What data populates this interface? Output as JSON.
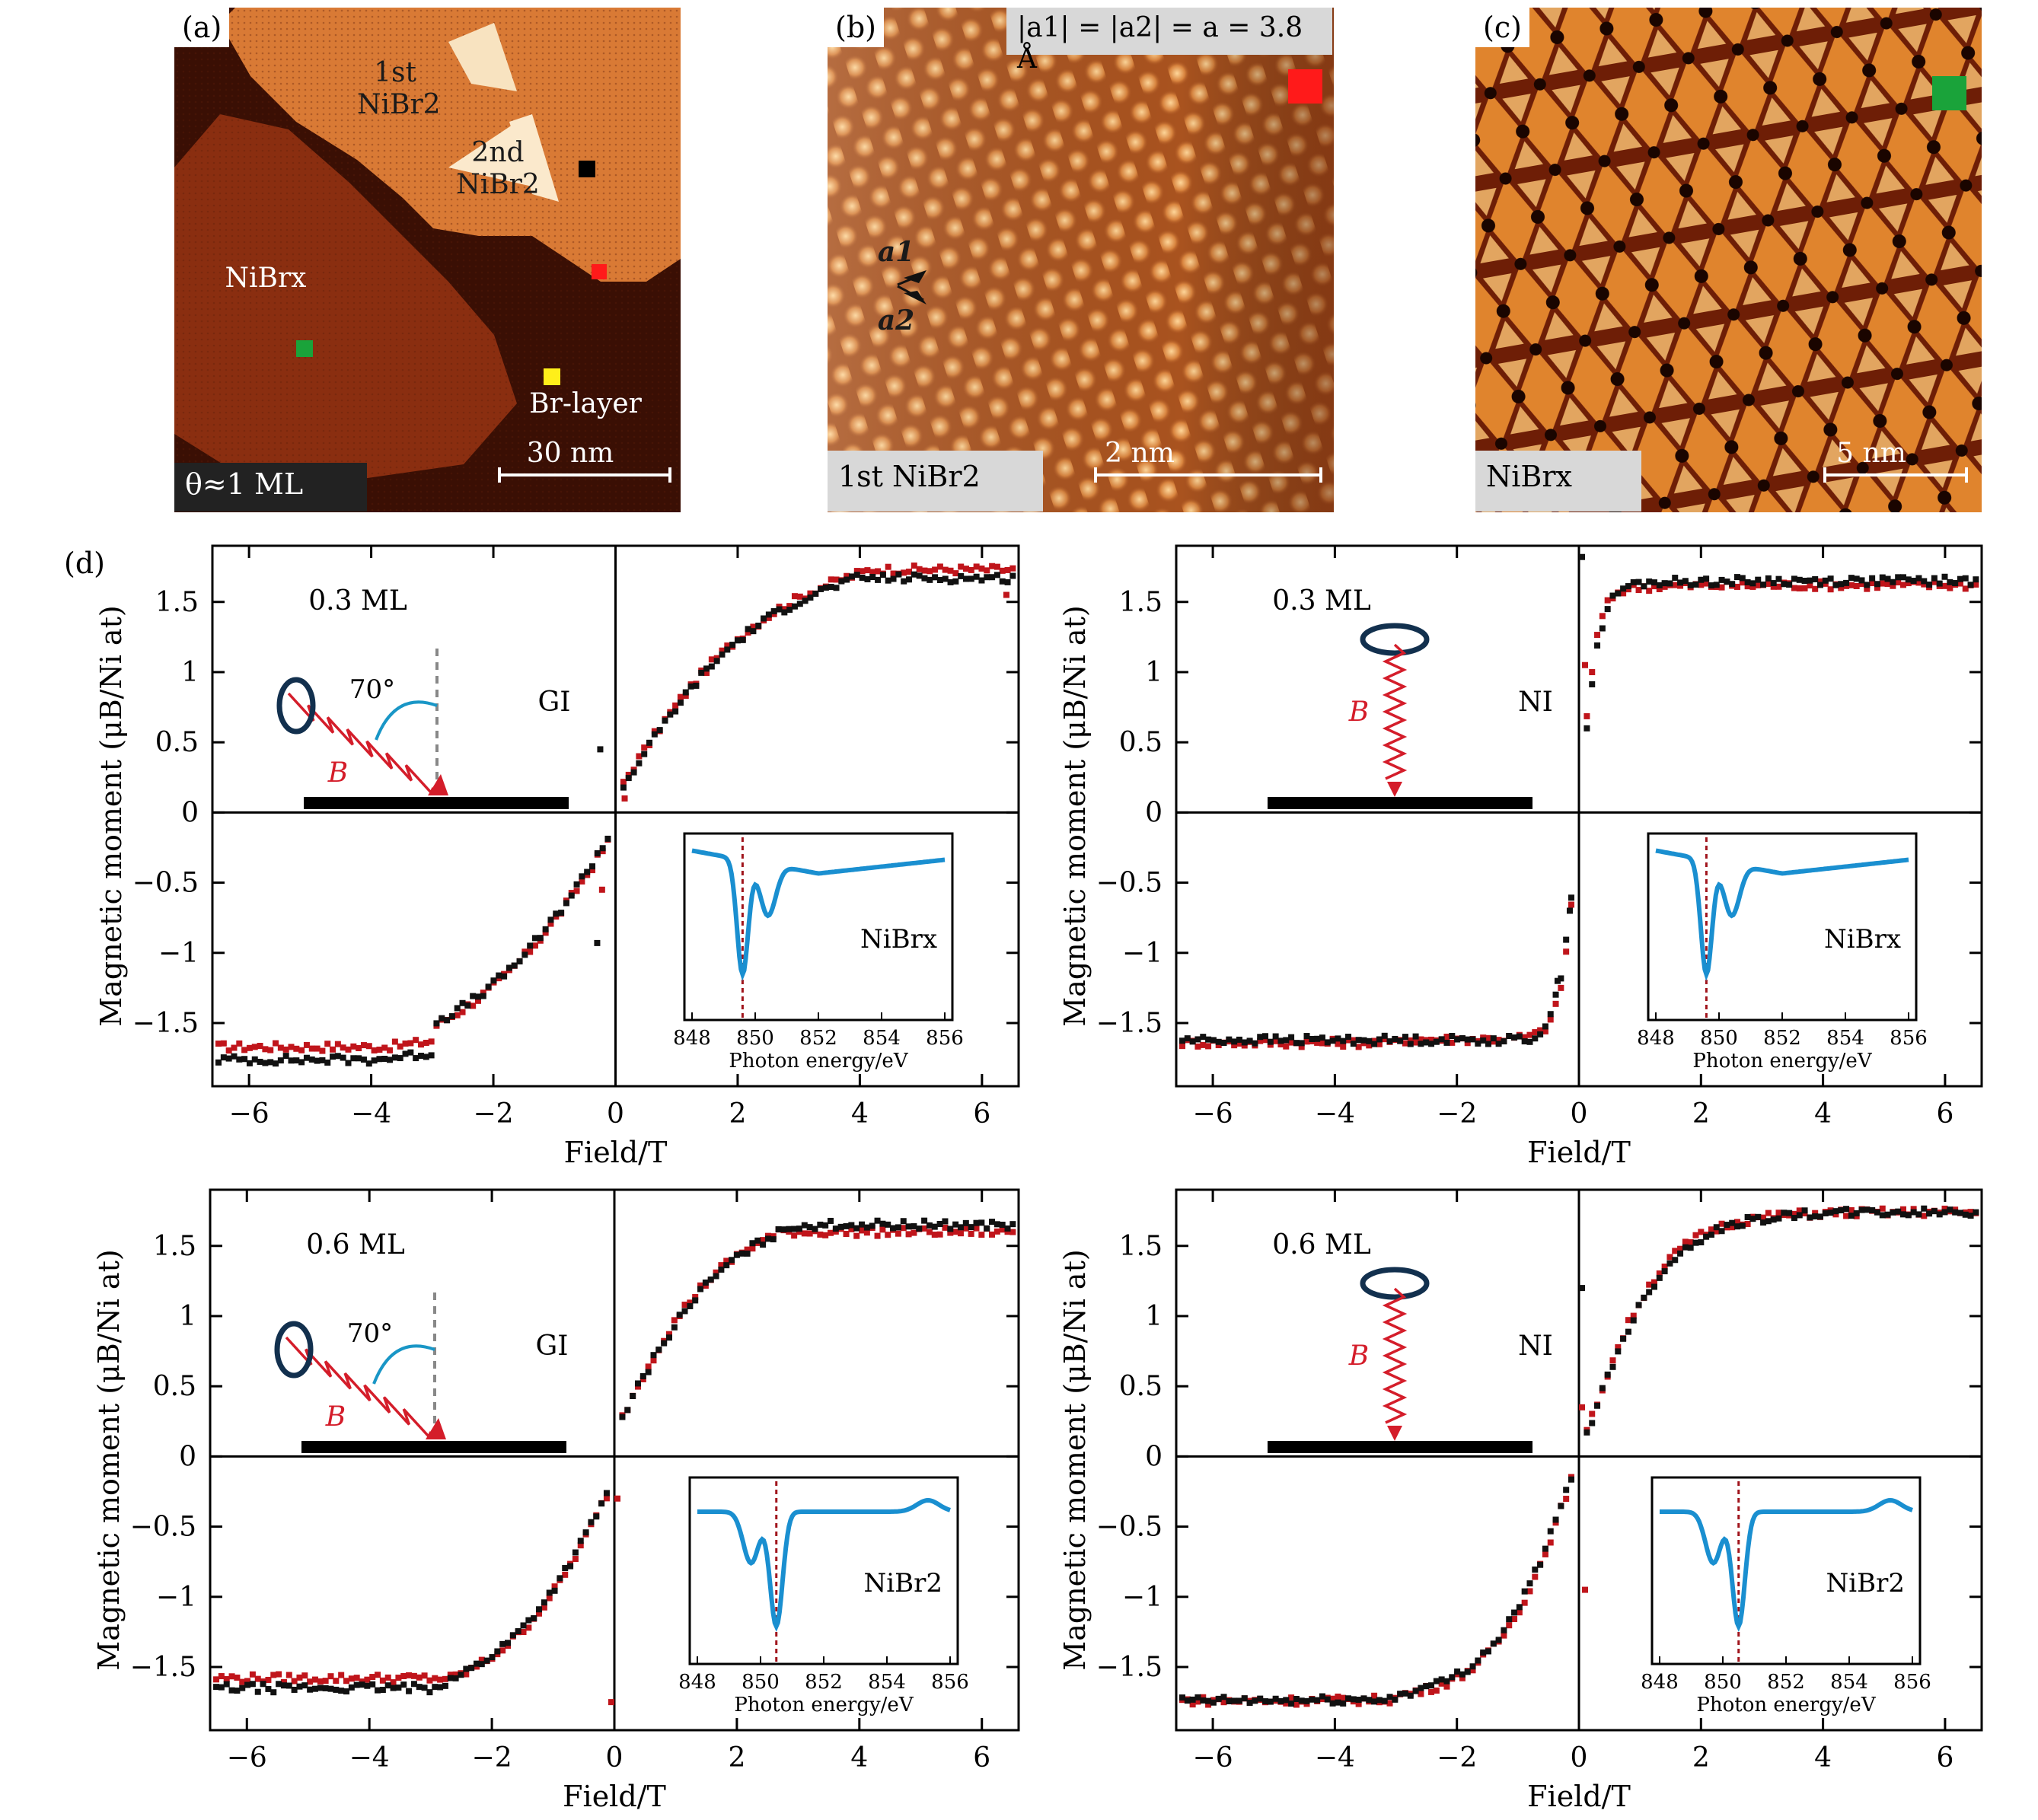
{
  "panels": {
    "a": {
      "label": "(a)",
      "first_layer": "1st NiBr2",
      "second_layer": "2nd NiBr2",
      "nibrx_region": "NiBrx",
      "br_layer": "Br-layer",
      "scale": "30 nm",
      "coverage": "θ≈1 ML",
      "markers": {
        "black": "#000000",
        "red": "#ff1a1a",
        "green": "#1aa33a",
        "yellow": "#ffef1a"
      }
    },
    "b": {
      "label": "(b)",
      "lattice_note": "|a1| = |a2| = a = 3.8 Å",
      "vec1": "a1",
      "vec2": "a2",
      "scale": "2 nm",
      "tag": "1st NiBr2",
      "marker_color": "#ff1a1a"
    },
    "c": {
      "label": "(c)",
      "scale": "5 nm",
      "tag": "NiBrx",
      "marker_color": "#1aa33a"
    },
    "d": {
      "label": "(d)"
    }
  },
  "chart_data": [
    {
      "type": "scatter",
      "id": "d1",
      "coverage": "0.3 ML",
      "geometry": "GI",
      "angle": "70°",
      "field_label": "B",
      "xlabel": "Field/T",
      "ylabel": "Magnetic moment (μB/Ni at)",
      "xlim": [
        -6.6,
        6.6
      ],
      "ylim": [
        -1.95,
        1.9
      ],
      "xticks": [
        -6,
        -4,
        -2,
        0,
        2,
        4,
        6
      ],
      "yticks": [
        1.5,
        1.0,
        0.5,
        0,
        -0.5,
        -1.0,
        -1.5
      ],
      "series": [
        {
          "color": "#c0151b",
          "model": {
            "shape": "langevin",
            "amp": 1.78,
            "k": 0.95,
            "offset": -0.05
          },
          "neg_sat": -1.67,
          "pos_sat": 1.8
        },
        {
          "color": "#111111",
          "model": {
            "shape": "langevin",
            "amp": 1.75,
            "k": 1.0,
            "offset": -0.08
          },
          "neg_sat": -1.8,
          "pos_sat": 1.7
        }
      ],
      "outliers": [
        [
          -0.25,
          0.45,
          "#111111"
        ],
        [
          0.15,
          0.1,
          "#c0151b"
        ],
        [
          -0.22,
          -0.55,
          "#c0151b"
        ],
        [
          -0.3,
          -0.93,
          "#111111"
        ],
        [
          6.4,
          1.55,
          "#c0151b"
        ]
      ],
      "inset": {
        "label": "NiBrx",
        "xlabel": "Photon energy/eV",
        "xticks": [
          848,
          850,
          852,
          854,
          856
        ],
        "marker_x": 849.6,
        "shape": "x"
      }
    },
    {
      "type": "scatter",
      "id": "d2",
      "coverage": "0.3 ML",
      "geometry": "NI",
      "field_label": "B",
      "xlabel": "Field/T",
      "ylabel": "Magnetic moment (μB/Ni at)",
      "xlim": [
        -6.6,
        6.6
      ],
      "ylim": [
        -1.95,
        1.9
      ],
      "xticks": [
        -6,
        -4,
        -2,
        0,
        2,
        4,
        6
      ],
      "yticks": [
        1.5,
        1.0,
        0.5,
        0,
        -0.5,
        -1.0,
        -1.5
      ],
      "series": [
        {
          "color": "#c0151b",
          "model": {
            "shape": "step",
            "amp": 1.62,
            "k": 3.5,
            "offset": 0
          },
          "neg_sat": -1.65,
          "pos_sat": 1.62
        },
        {
          "color": "#111111",
          "model": {
            "shape": "step",
            "amp": 1.65,
            "k": 3.0,
            "offset": 0
          },
          "neg_sat": -1.62,
          "pos_sat": 1.67
        }
      ],
      "outliers": [
        [
          0.05,
          1.82,
          "#111111"
        ],
        [
          0.1,
          1.05,
          "#c0151b"
        ],
        [
          -0.15,
          -0.7,
          "#111111"
        ],
        [
          -0.35,
          -1.2,
          "#111111"
        ]
      ],
      "inset": {
        "label": "NiBrx",
        "xlabel": "Photon energy/eV",
        "xticks": [
          848,
          850,
          852,
          854,
          856
        ],
        "marker_x": 849.6,
        "shape": "x"
      }
    },
    {
      "type": "scatter",
      "id": "d3",
      "coverage": "0.6 ML",
      "geometry": "GI",
      "angle": "70°",
      "field_label": "B",
      "xlabel": "Field/T",
      "ylabel": "Magnetic moment (μB/Ni at)",
      "xlim": [
        -6.6,
        6.6
      ],
      "ylim": [
        -1.95,
        1.9
      ],
      "xticks": [
        -6,
        -4,
        -2,
        0,
        2,
        4,
        6
      ],
      "yticks": [
        1.5,
        1.0,
        0.5,
        0,
        -0.5,
        -1.0,
        -1.5
      ],
      "series": [
        {
          "color": "#c0151b",
          "model": {
            "shape": "langevin",
            "amp": 1.62,
            "k": 1.4,
            "offset": 0
          },
          "neg_sat": -1.58,
          "pos_sat": 1.6
        },
        {
          "color": "#111111",
          "model": {
            "shape": "langevin",
            "amp": 1.66,
            "k": 1.3,
            "offset": 0
          },
          "neg_sat": -1.65,
          "pos_sat": 1.65
        }
      ],
      "outliers": [
        [
          -0.05,
          -1.75,
          "#c0151b"
        ],
        [
          0.05,
          -0.3,
          "#c0151b"
        ]
      ],
      "inset": {
        "label": "NiBr2",
        "xlabel": "Photon energy/eV",
        "xticks": [
          848,
          850,
          852,
          854,
          856
        ],
        "marker_x": 850.5,
        "shape": "2"
      }
    },
    {
      "type": "scatter",
      "id": "d4",
      "coverage": "0.6 ML",
      "geometry": "NI",
      "field_label": "B",
      "xlabel": "Field/T",
      "ylabel": "Magnetic moment (μB/Ni at)",
      "xlim": [
        -6.6,
        6.6
      ],
      "ylim": [
        -1.95,
        1.9
      ],
      "xticks": [
        -6,
        -4,
        -2,
        0,
        2,
        4,
        6
      ],
      "yticks": [
        1.5,
        1.0,
        0.5,
        0,
        -0.5,
        -1.0,
        -1.5
      ],
      "series": [
        {
          "color": "#c0151b",
          "model": {
            "shape": "tanh",
            "amp": 1.74,
            "k": 0.75,
            "offset": 0
          },
          "neg_sat": -1.74,
          "pos_sat": 1.74
        },
        {
          "color": "#111111",
          "model": {
            "shape": "tanh",
            "amp": 1.74,
            "k": 0.72,
            "offset": 0
          },
          "neg_sat": -1.74,
          "pos_sat": 1.74
        }
      ],
      "outliers": [
        [
          0.05,
          1.2,
          "#111111"
        ],
        [
          0.05,
          0.35,
          "#c0151b"
        ],
        [
          0.1,
          -0.95,
          "#c0151b"
        ]
      ],
      "inset": {
        "label": "NiBr2",
        "xlabel": "Photon energy/eV",
        "xticks": [
          848,
          850,
          852,
          854,
          856
        ],
        "marker_x": 850.5,
        "shape": "2"
      }
    }
  ]
}
